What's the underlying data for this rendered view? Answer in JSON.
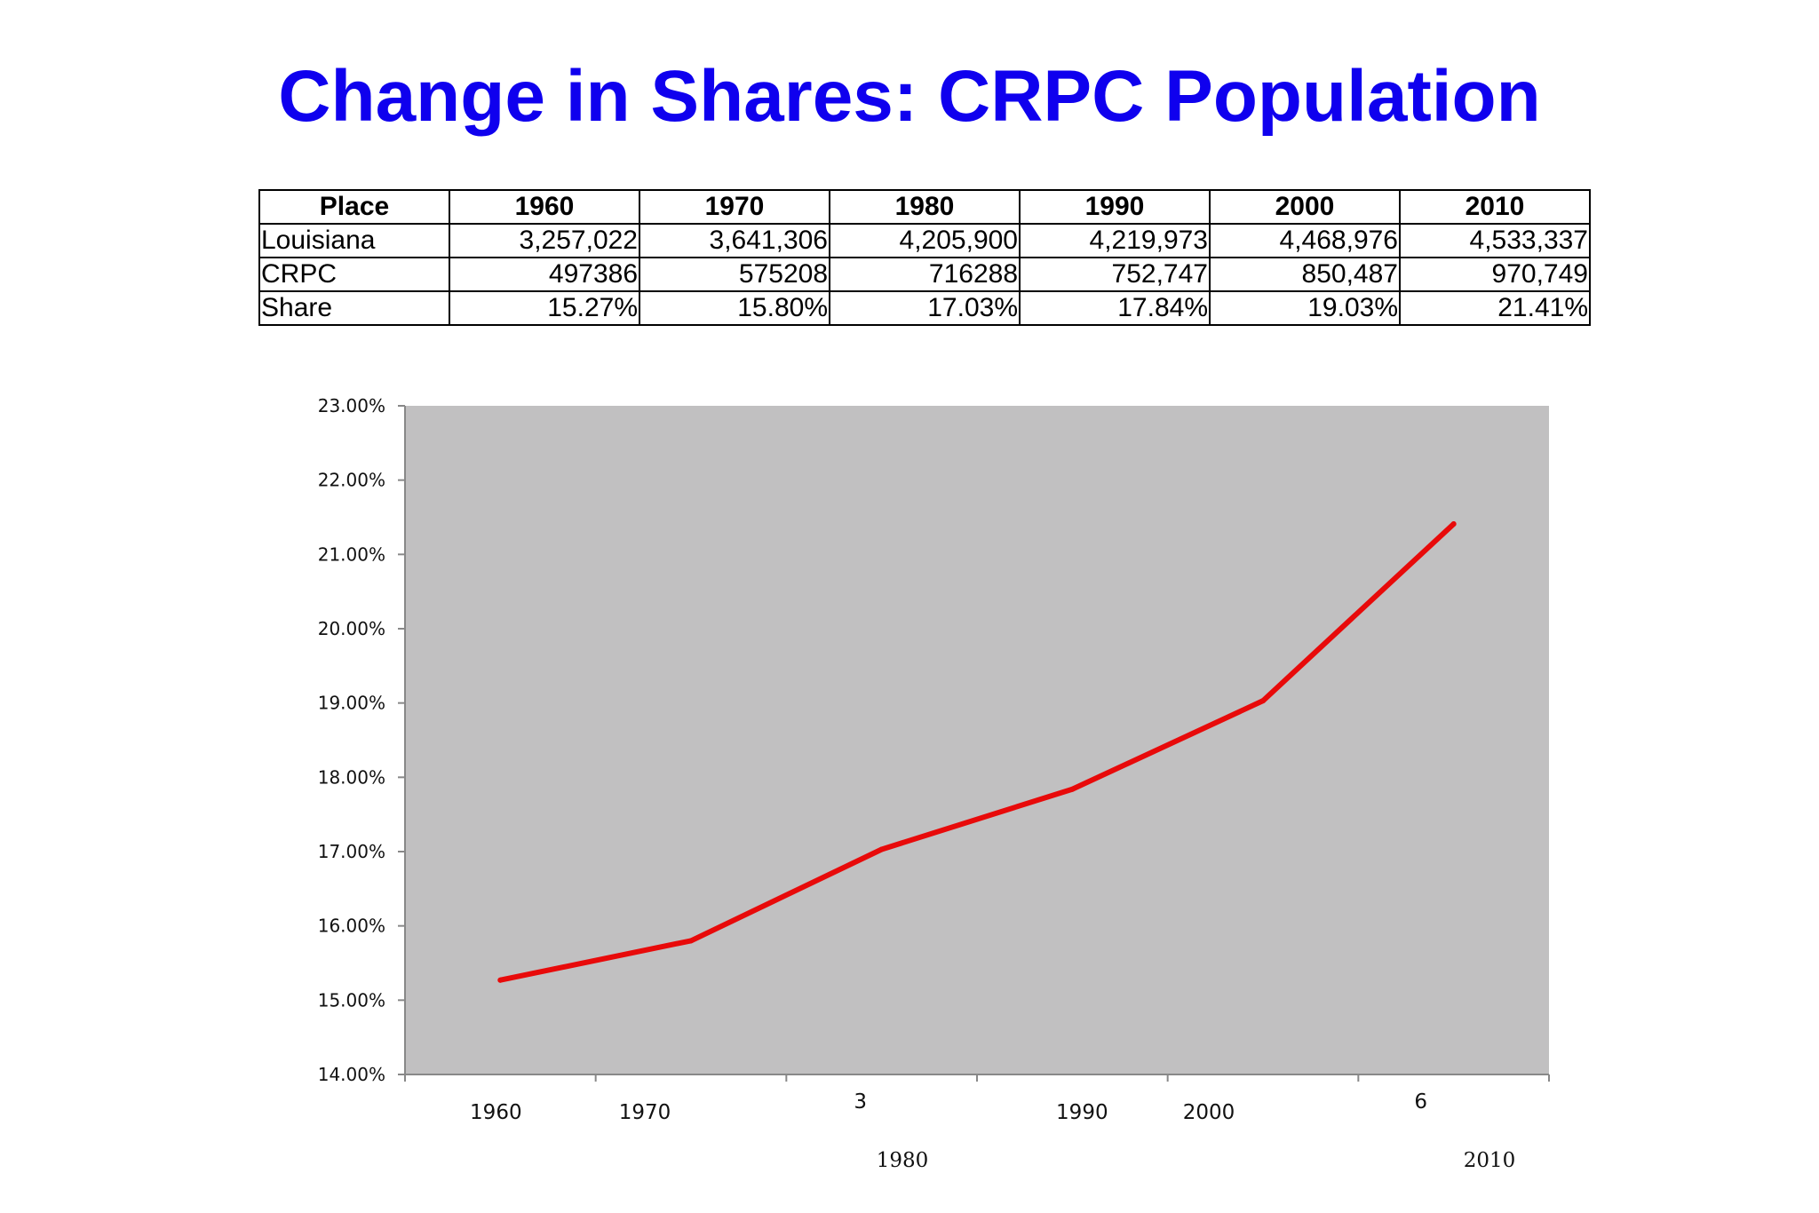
{
  "title": "Change in Shares: CRPC Population",
  "table": {
    "headers": [
      "Place",
      "1960",
      "1970",
      "1980",
      "1990",
      "2000",
      "2010"
    ],
    "rows": [
      [
        "Louisiana",
        "3,257,022",
        "3,641,306",
        "4,205,900",
        "4,219,973",
        "4,468,976",
        "4,533,337"
      ],
      [
        "CRPC",
        "497386",
        "575208",
        "716288",
        "752,747",
        "850,487",
        "970,749"
      ],
      [
        "Share",
        "15.27%",
        "15.80%",
        "17.03%",
        "17.84%",
        "19.03%",
        "21.41%"
      ]
    ]
  },
  "chart_data": {
    "type": "line",
    "title": "",
    "xlabel": "",
    "ylabel": "",
    "categories": [
      "1960",
      "1970",
      "1980",
      "1990",
      "2000",
      "2010"
    ],
    "values": [
      15.27,
      15.8,
      17.03,
      17.84,
      19.03,
      21.41
    ],
    "ylim": [
      14.0,
      23.0
    ],
    "y_ticks": [
      "14.00%",
      "15.00%",
      "16.00%",
      "17.00%",
      "18.00%",
      "19.00%",
      "20.00%",
      "21.00%",
      "22.00%",
      "23.00%"
    ],
    "x_tick_labels": [
      "1960",
      "1970",
      "3",
      "1990",
      "2000",
      "6"
    ],
    "extra_labels": [
      "1980",
      "2010"
    ],
    "line_color": "#e80a0a",
    "plot_background": "#c1c0c1",
    "grid": false,
    "legend": "none"
  }
}
